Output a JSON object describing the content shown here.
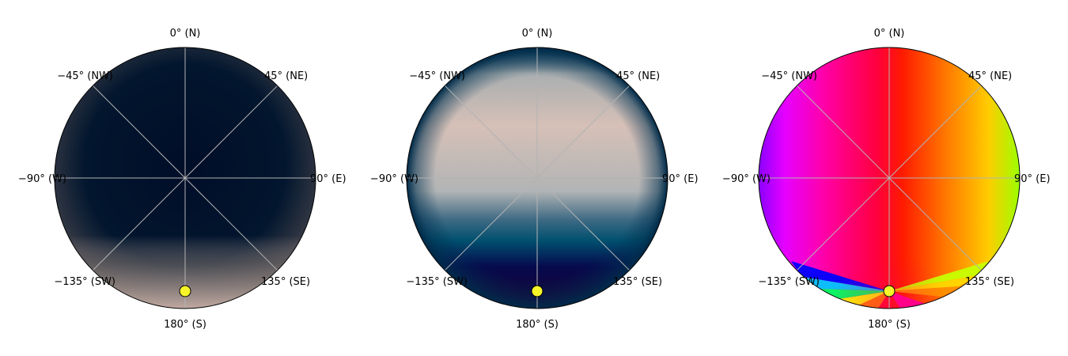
{
  "panels": [
    {
      "id": "panel-1",
      "colors": {
        "base": "#02122c",
        "edge": "#3a3f4c",
        "south_glow": "#b8a49e"
      },
      "sun": {
        "azimuth_deg": 180,
        "color": "#f5f52a"
      }
    },
    {
      "id": "panel-2",
      "colors": {
        "center": "#d8c0b6",
        "mid": "#6f8ea0",
        "edge": "#003a60",
        "south_dark": "#16003a"
      },
      "sun": {
        "azimuth_deg": 180,
        "color": "#f5f52a"
      }
    },
    {
      "id": "panel-3",
      "colors": {
        "north": "#ff0030",
        "east": "#ff9900",
        "west": "#ff00ff",
        "edge_east": "#00ff40",
        "edge_west": "#0000ff"
      },
      "sun": {
        "azimuth_deg": 180,
        "color": "#f5f52a"
      }
    }
  ],
  "labels": {
    "n": "0$^\\circ$ (N)",
    "ne": "45$^\\circ$ (NE)",
    "e": "90$^\\circ$ (E)",
    "se": "135$^\\circ$ (SE)",
    "s": "180$^\\circ$ (S)",
    "sw": "−135$^\\circ$ (SW)",
    "w": "−90$^\\circ$ (W)",
    "nw": "−45$^\\circ$ (NW)"
  },
  "display_labels": {
    "n": "0° (N)",
    "ne": "45° (NE)",
    "e": "90° (E)",
    "se": "135° (SE)",
    "s": "180° (S)",
    "sw": "−135° (SW)",
    "w": "−90° (W)",
    "nw": "−45° (NW)"
  }
}
